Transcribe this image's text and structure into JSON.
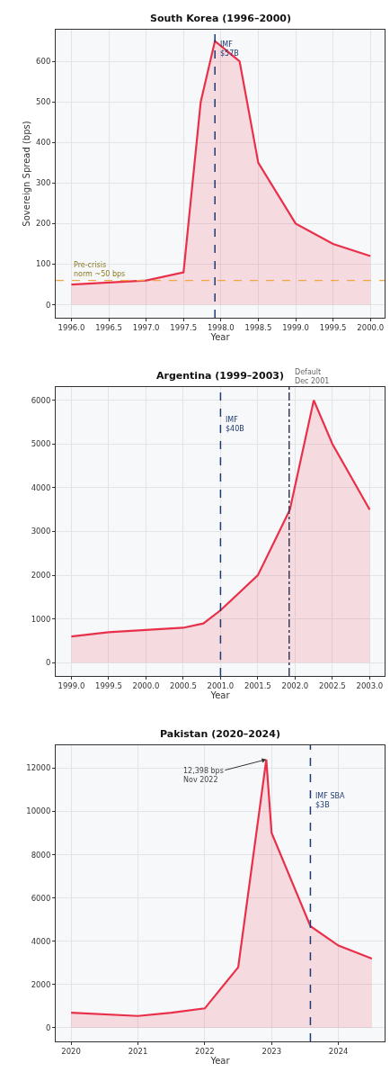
{
  "chart_data": [
    {
      "type": "area",
      "title": "South Korea (1996–2000)",
      "xlabel": "Year",
      "ylabel": "Sovereign Spread (bps)",
      "x": [
        1996.0,
        1996.5,
        1997.0,
        1997.5,
        1997.73,
        1997.92,
        1998.25,
        1998.5,
        1999.0,
        1999.5,
        2000.0
      ],
      "series": [
        {
          "color": "#e8304a",
          "values": [
            50,
            55,
            60,
            80,
            500,
            650,
            600,
            350,
            200,
            150,
            120
          ]
        }
      ],
      "xlim": [
        1995.79,
        2000.19
      ],
      "ylim": [
        -32,
        678
      ],
      "xticks": [
        {
          "value": 1996.0,
          "label": "1996.0"
        },
        1996.5,
        {
          "value": 1997.0,
          "label": "1997.0"
        },
        1997.5,
        {
          "value": 1998.0,
          "label": "1998.0"
        },
        1998.5,
        {
          "value": 1999.0,
          "label": "1999.0"
        },
        1999.5,
        {
          "value": 2000.0,
          "label": "2000.0"
        }
      ],
      "yticks": [
        0,
        100,
        200,
        300,
        400,
        500,
        600
      ],
      "ref_lines": [
        {
          "axis": "x",
          "value": 1997.92,
          "label": "IMF\n$57B",
          "color": "#1f3b73",
          "line_style": "dashed"
        },
        {
          "axis": "y",
          "value": 60,
          "label": "Pre-crisis\nnorm ~50 bps",
          "color": "#f4a442",
          "line_style": "dashed"
        }
      ],
      "grid": true,
      "marker": "none",
      "line_style": "solid"
    },
    {
      "type": "area",
      "title": "Argentina (1999–2003)",
      "xlabel": "Year",
      "x": [
        1999.0,
        1999.5,
        2000.0,
        2000.5,
        2000.77,
        2001.0,
        2001.5,
        2001.73,
        2001.93,
        2002.25,
        2002.5,
        2003.0
      ],
      "series": [
        {
          "color": "#e8304a",
          "values": [
            600,
            700,
            750,
            800,
            900,
            1200,
            2000,
            2800,
            3500,
            6000,
            5000,
            3500
          ]
        }
      ],
      "xlim": [
        1998.79,
        2003.2
      ],
      "ylim": [
        -301,
        6301
      ],
      "xticks": [
        {
          "value": 1999.0,
          "label": "1999.0"
        },
        1999.5,
        {
          "value": 2000.0,
          "label": "2000.0"
        },
        2000.5,
        {
          "value": 2001.0,
          "label": "2001.0"
        },
        2001.5,
        {
          "value": 2002.0,
          "label": "2002.0"
        },
        2002.5,
        {
          "value": 2003.0,
          "label": "2003.0"
        }
      ],
      "yticks": [
        0,
        1000,
        2000,
        3000,
        4000,
        5000,
        6000
      ],
      "ref_lines": [
        {
          "axis": "x",
          "value": 2001.0,
          "label": "IMF\n$40B",
          "color": "#1f3b73",
          "line_style": "dashed"
        },
        {
          "axis": "x",
          "value": 2001.92,
          "label": "Default\nDec 2001",
          "color": "#3a3a55",
          "line_style": "dashdot"
        }
      ],
      "grid": true,
      "marker": "none",
      "line_style": "solid"
    },
    {
      "type": "area",
      "title": "Pakistan (2020–2024)",
      "xlabel": "Year",
      "x": [
        2020.0,
        2021.0,
        2021.5,
        2022.0,
        2022.5,
        2022.92,
        2023.0,
        2023.58,
        2024.0,
        2024.5
      ],
      "series": [
        {
          "color": "#e8304a",
          "values": [
            700,
            550,
            700,
            900,
            2800,
            12398,
            9000,
            4700,
            3800,
            3200
          ]
        }
      ],
      "xlim": [
        2019.77,
        2024.69
      ],
      "ylim": [
        -625,
        13055
      ],
      "xticks": [
        2020,
        2021,
        2022,
        2023,
        2024
      ],
      "yticks": [
        0,
        2000,
        4000,
        6000,
        8000,
        10000,
        12000
      ],
      "ref_lines": [
        {
          "axis": "x",
          "value": 2023.58,
          "label": "IMF SBA\n$3B",
          "color": "#1f3b73",
          "line_style": "dashed"
        }
      ],
      "annotations": [
        {
          "text": "12,398 bps\nNov 2022",
          "x": 2022.92,
          "y": 12398
        }
      ],
      "grid": true,
      "marker": "none",
      "line_style": "solid"
    }
  ]
}
